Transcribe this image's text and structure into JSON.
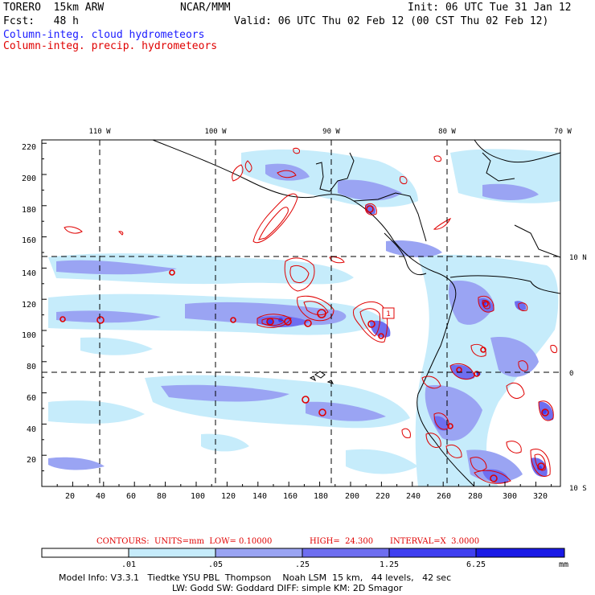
{
  "header": {
    "model": "TORERO  15km ARW",
    "center": "NCAR/MMM",
    "init": "Init: 06 UTC Tue 31 Jan 12",
    "fcst": "Fcst:   48 h",
    "valid": "Valid: 06 UTC Thu 02 Feb 12 (00 CST Thu 02 Feb 12)",
    "field1": "Column-integ. cloud hydrometeors",
    "field2": "Column-integ. precip. hydrometeors"
  },
  "colors": {
    "field1": "#1a1aff",
    "field2": "#e00000",
    "cloud_light": "#c6ecfb",
    "cloud_mid": "#9aa4f3",
    "cloud_dark": "#6e6ef0",
    "cloud_darker": "#3f3ff0",
    "cloud_darkest": "#1a1ae6",
    "precip": "#e00000"
  },
  "map": {
    "x_ticks": [
      "20",
      "40",
      "60",
      "80",
      "100",
      "120",
      "140",
      "160",
      "180",
      "200",
      "220",
      "240",
      "260",
      "280",
      "300",
      "320"
    ],
    "y_ticks": [
      "20",
      "40",
      "60",
      "80",
      "100",
      "120",
      "140",
      "160",
      "180",
      "200",
      "220"
    ],
    "lon_labels": [
      "110 W",
      "100 W",
      "90 W",
      "80 W",
      "70 W"
    ],
    "lat_labels": [
      "10 N",
      "0",
      "10 S"
    ],
    "box_label": "1"
  },
  "contour_info": {
    "units": "CONTOURS:  UNITS=mm  LOW= 0.10000",
    "high": "HIGH=  24.300",
    "interval": "INTERVAL=X  3.0000"
  },
  "colorbar": {
    "ticks": [
      ".01",
      ".05",
      ".25",
      "1.25",
      "6.25"
    ],
    "unit": "mm"
  },
  "footer": {
    "line1": "Model Info: V3.3.1   Tiedtke YSU PBL  Thompson    Noah LSM  15 km,   44 levels,   42 sec",
    "line2": "LW: Godd SW: Goddard DIFF: simple KM: 2D Smagor"
  }
}
